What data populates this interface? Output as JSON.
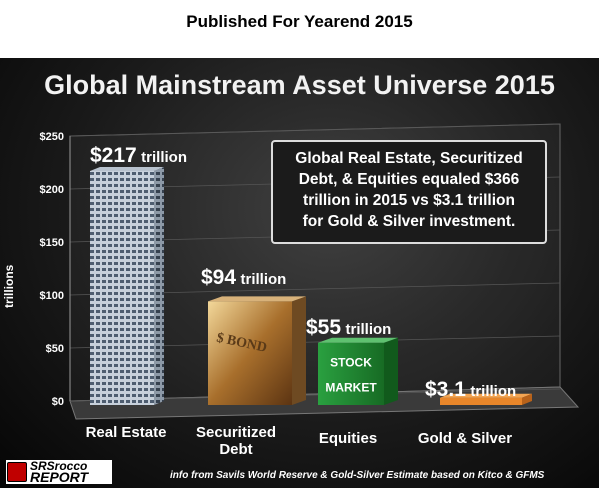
{
  "header": {
    "published": "Published For Yearend 2015"
  },
  "chart_data": {
    "type": "bar",
    "title": "Global Mainstream Asset Universe 2015",
    "ylabel": "trillions",
    "ylim": [
      0,
      250
    ],
    "yticks": [
      "$0",
      "$50",
      "$100",
      "$150",
      "$200",
      "$250"
    ],
    "categories": [
      "Real Estate",
      "Securitized Debt",
      "Equities",
      "Gold & Silver"
    ],
    "values": [
      217,
      94,
      55,
      3.1
    ],
    "value_labels": [
      {
        "amount": "$217",
        "unit": "trillion"
      },
      {
        "amount": "$94",
        "unit": "trillion"
      },
      {
        "amount": "$55",
        "unit": "trillion"
      },
      {
        "amount": "$3.1",
        "unit": "trillion"
      }
    ],
    "annotation": [
      "Global Real Estate, Securitized",
      "Debt, & Equities equaled $366",
      "trillion in 2015 vs $3.1 trillion",
      "for Gold & Silver investment."
    ],
    "bar_text": {
      "stock": "STOCK",
      "market": "MARKET",
      "bond": "$ BOND"
    }
  },
  "footer": {
    "logo": [
      "SRSrocco",
      "REPORT"
    ],
    "source": "info from Savils World Reserve & Gold-Silver Estimate based on Kitco & GFMS"
  },
  "colors": {
    "background": "#1a1a1a",
    "gold": "#e8862a",
    "stock_green": "#1f8a2e",
    "building": "#9aa6b4"
  }
}
